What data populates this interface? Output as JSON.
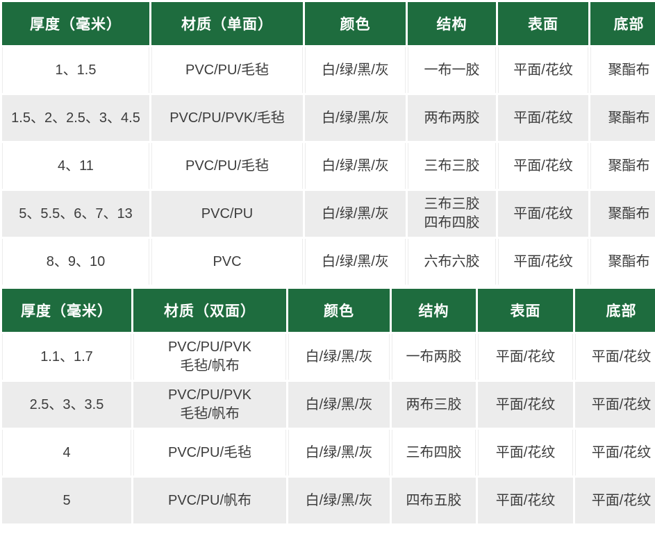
{
  "colors": {
    "header_bg": "#1e6c3e",
    "header_text": "#ffffff",
    "stripe_bg": "#ececec",
    "body_text": "#3c3c3c",
    "page_bg": "#ffffff"
  },
  "tables": [
    {
      "name": "single-sided-belt-specs",
      "headers": [
        "厚度（毫米）",
        "材质（单面）",
        "颜色",
        "结构",
        "表面",
        "底部"
      ],
      "rows": [
        [
          "1、1.5",
          "PVC/PU/毛毡",
          "白/绿/黑/灰",
          "一布一胶",
          "平面/花纹",
          "聚酯布"
        ],
        [
          "1.5、2、2.5、3、4.5",
          "PVC/PU/PVK/毛毡",
          "白/绿/黑/灰",
          "两布两胶",
          "平面/花纹",
          "聚酯布"
        ],
        [
          "4、11",
          "PVC/PU/毛毡",
          "白/绿/黑/灰",
          "三布三胶",
          "平面/花纹",
          "聚酯布"
        ],
        [
          "5、5.5、6、7、13",
          "PVC/PU",
          "白/绿/黑/灰",
          "三布三胶\n四布四胶",
          "平面/花纹",
          "聚酯布"
        ],
        [
          "8、9、10",
          "PVC",
          "白/绿/黑/灰",
          "六布六胶",
          "平面/花纹",
          "聚酯布"
        ]
      ]
    },
    {
      "name": "double-sided-belt-specs",
      "headers": [
        "厚度（毫米）",
        "材质（双面）",
        "颜色",
        "结构",
        "表面",
        "底部"
      ],
      "rows": [
        [
          "1.1、1.7",
          "PVC/PU/PVK\n毛毡/帆布",
          "白/绿/黑/灰",
          "一布两胶",
          "平面/花纹",
          "平面/花纹"
        ],
        [
          "2.5、3、3.5",
          "PVC/PU/PVK\n毛毡/帆布",
          "白/绿/黑/灰",
          "两布三胶",
          "平面/花纹",
          "平面/花纹"
        ],
        [
          "4",
          "PVC/PU/毛毡",
          "白/绿/黑/灰",
          "三布四胶",
          "平面/花纹",
          "平面/花纹"
        ],
        [
          "5",
          "PVC/PU/帆布",
          "白/绿/黑/灰",
          "四布五胶",
          "平面/花纹",
          "平面/花纹"
        ]
      ]
    }
  ]
}
